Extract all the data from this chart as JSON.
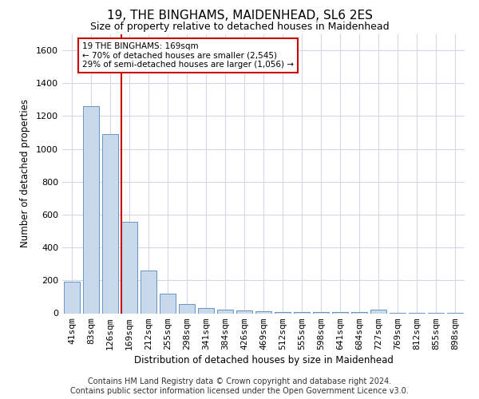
{
  "title": "19, THE BINGHAMS, MAIDENHEAD, SL6 2ES",
  "subtitle": "Size of property relative to detached houses in Maidenhead",
  "xlabel": "Distribution of detached houses by size in Maidenhead",
  "ylabel": "Number of detached properties",
  "categories": [
    "41sqm",
    "83sqm",
    "126sqm",
    "169sqm",
    "212sqm",
    "255sqm",
    "298sqm",
    "341sqm",
    "384sqm",
    "426sqm",
    "469sqm",
    "512sqm",
    "555sqm",
    "598sqm",
    "641sqm",
    "684sqm",
    "727sqm",
    "769sqm",
    "812sqm",
    "855sqm",
    "898sqm"
  ],
  "values": [
    190,
    1260,
    1090,
    555,
    260,
    120,
    55,
    30,
    20,
    15,
    10,
    5,
    5,
    5,
    5,
    5,
    20,
    2,
    2,
    2,
    2
  ],
  "bar_color": "#c9d9ec",
  "bar_edge_color": "#6495c8",
  "highlight_index": 3,
  "highlight_box_text_line1": "19 THE BINGHAMS: 169sqm",
  "highlight_box_text_line2": "← 70% of detached houses are smaller (2,545)",
  "highlight_box_text_line3": "29% of semi-detached houses are larger (1,056) →",
  "highlight_line_color": "#cc0000",
  "highlight_box_edge_color": "#cc0000",
  "ylim": [
    0,
    1700
  ],
  "yticks": [
    0,
    200,
    400,
    600,
    800,
    1000,
    1200,
    1400,
    1600
  ],
  "footer_line1": "Contains HM Land Registry data © Crown copyright and database right 2024.",
  "footer_line2": "Contains public sector information licensed under the Open Government Licence v3.0.",
  "background_color": "#ffffff",
  "grid_color": "#d0d8e8",
  "title_fontsize": 11,
  "subtitle_fontsize": 9,
  "axis_label_fontsize": 8.5,
  "tick_fontsize": 8,
  "annotation_fontsize": 7.5,
  "footer_fontsize": 7
}
